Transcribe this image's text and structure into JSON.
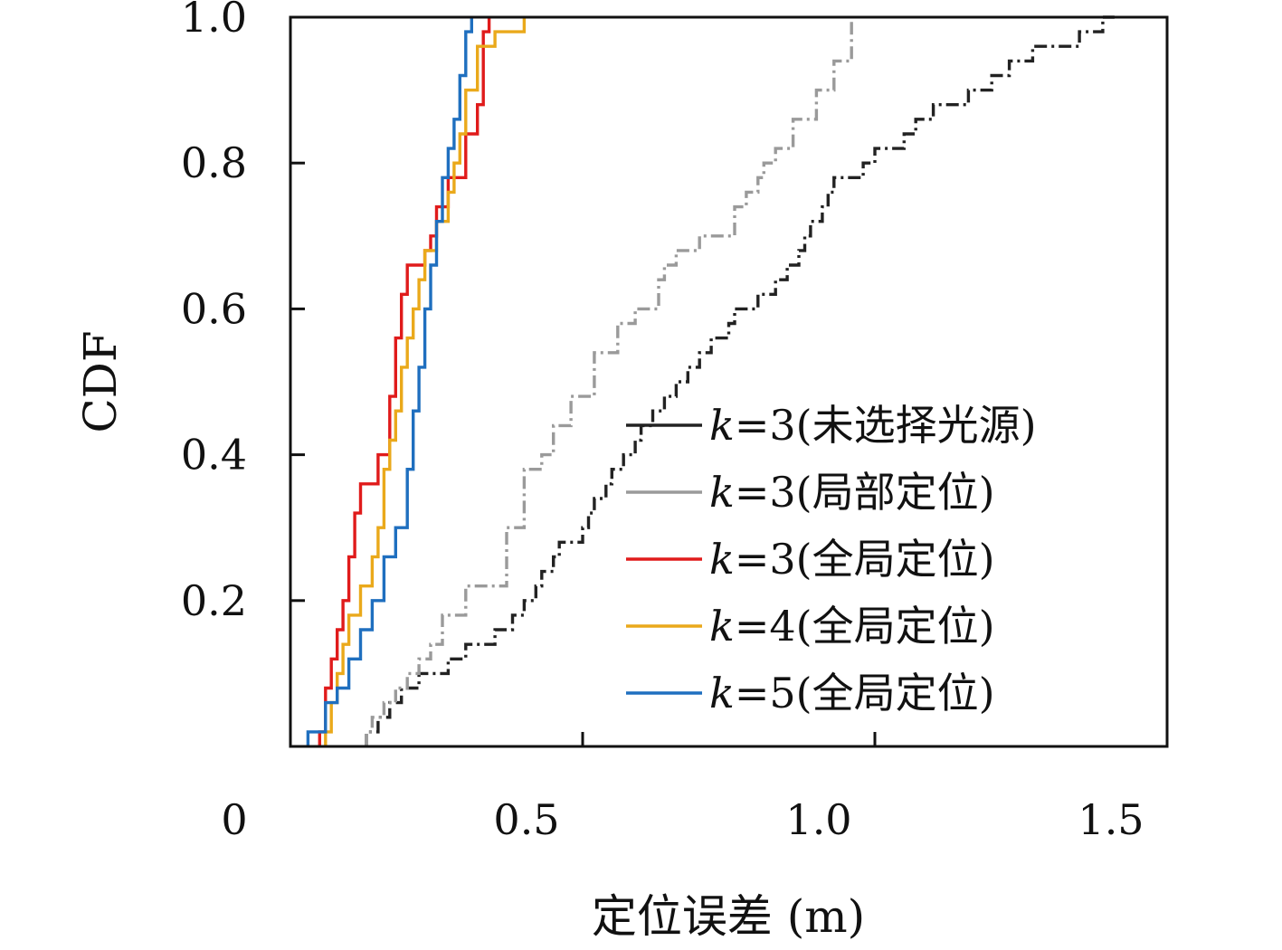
{
  "chart_data": {
    "type": "line",
    "title": "",
    "xlabel": "定位误差 (m)",
    "ylabel": "CDF",
    "xlim": [
      0,
      1.5
    ],
    "ylim": [
      0,
      1.0
    ],
    "x_ticks": [
      "0",
      "0.5",
      "1.0",
      "1.5"
    ],
    "y_ticks": [
      "0.2",
      "0.4",
      "0.6",
      "0.8",
      "1.0"
    ],
    "grid": false,
    "legend_position": "bottom-right",
    "series": [
      {
        "name": "k=3(未选择光源)",
        "color": "#222222",
        "dash": "dashdot",
        "x": [
          0.13,
          0.15,
          0.17,
          0.19,
          0.22,
          0.27,
          0.3,
          0.35,
          0.38,
          0.4,
          0.42,
          0.43,
          0.45,
          0.46,
          0.5,
          0.51,
          0.52,
          0.54,
          0.55,
          0.57,
          0.59,
          0.6,
          0.62,
          0.64,
          0.66,
          0.68,
          0.7,
          0.72,
          0.75,
          0.76,
          0.8,
          0.83,
          0.85,
          0.87,
          0.88,
          0.89,
          0.91,
          0.92,
          0.93,
          0.98,
          1.0,
          1.05,
          1.07,
          1.1,
          1.16,
          1.2,
          1.23,
          1.27,
          1.35,
          1.39,
          1.41
        ],
        "y": [
          0.02,
          0.04,
          0.06,
          0.08,
          0.1,
          0.12,
          0.14,
          0.16,
          0.18,
          0.2,
          0.22,
          0.24,
          0.26,
          0.28,
          0.3,
          0.32,
          0.34,
          0.36,
          0.38,
          0.4,
          0.42,
          0.44,
          0.46,
          0.48,
          0.5,
          0.52,
          0.54,
          0.56,
          0.58,
          0.6,
          0.62,
          0.64,
          0.66,
          0.68,
          0.7,
          0.72,
          0.74,
          0.76,
          0.78,
          0.8,
          0.82,
          0.84,
          0.86,
          0.88,
          0.9,
          0.92,
          0.94,
          0.96,
          0.98,
          1.0,
          1.0
        ]
      },
      {
        "name": "k=3(局部定位)",
        "color": "#9a9a9a",
        "dash": "dashdot",
        "x": [
          0.13,
          0.14,
          0.16,
          0.18,
          0.2,
          0.22,
          0.24,
          0.26,
          0.3,
          0.37,
          0.4,
          0.43,
          0.45,
          0.48,
          0.52,
          0.56,
          0.59,
          0.63,
          0.64,
          0.66,
          0.7,
          0.76,
          0.78,
          0.8,
          0.81,
          0.83,
          0.86,
          0.9,
          0.93,
          0.96
        ],
        "y": [
          0.02,
          0.04,
          0.06,
          0.08,
          0.1,
          0.12,
          0.14,
          0.18,
          0.22,
          0.3,
          0.38,
          0.4,
          0.44,
          0.48,
          0.54,
          0.58,
          0.6,
          0.64,
          0.66,
          0.68,
          0.7,
          0.74,
          0.76,
          0.78,
          0.8,
          0.82,
          0.86,
          0.9,
          0.94,
          1.0
        ]
      },
      {
        "name": "k=3(全局定位)",
        "color": "#e01b1b",
        "dash": "solid",
        "x": [
          0.05,
          0.06,
          0.07,
          0.08,
          0.09,
          0.1,
          0.11,
          0.12,
          0.15,
          0.17,
          0.18,
          0.19,
          0.2,
          0.23,
          0.24,
          0.25,
          0.27,
          0.3,
          0.32,
          0.33,
          0.34
        ],
        "y": [
          0.02,
          0.08,
          0.12,
          0.16,
          0.2,
          0.26,
          0.32,
          0.36,
          0.4,
          0.48,
          0.56,
          0.62,
          0.66,
          0.68,
          0.7,
          0.74,
          0.78,
          0.84,
          0.88,
          0.98,
          1.0
        ]
      },
      {
        "name": "k=4(全局定位)",
        "color": "#eaa91b",
        "dash": "solid",
        "x": [
          0.06,
          0.07,
          0.08,
          0.09,
          0.1,
          0.12,
          0.14,
          0.15,
          0.16,
          0.17,
          0.18,
          0.19,
          0.2,
          0.21,
          0.22,
          0.23,
          0.25,
          0.27,
          0.28,
          0.29,
          0.3,
          0.32,
          0.35,
          0.4
        ],
        "y": [
          0.02,
          0.06,
          0.1,
          0.14,
          0.18,
          0.22,
          0.26,
          0.3,
          0.38,
          0.42,
          0.46,
          0.52,
          0.56,
          0.6,
          0.64,
          0.68,
          0.72,
          0.76,
          0.8,
          0.84,
          0.9,
          0.96,
          0.98,
          1.0
        ]
      },
      {
        "name": "k=5(全局定位)",
        "color": "#1f6fbf",
        "dash": "solid",
        "x": [
          0.03,
          0.06,
          0.08,
          0.1,
          0.12,
          0.14,
          0.16,
          0.18,
          0.2,
          0.21,
          0.22,
          0.23,
          0.24,
          0.25,
          0.26,
          0.27,
          0.28,
          0.29,
          0.3,
          0.31
        ],
        "y": [
          0.02,
          0.06,
          0.08,
          0.12,
          0.16,
          0.2,
          0.26,
          0.3,
          0.38,
          0.46,
          0.52,
          0.6,
          0.66,
          0.72,
          0.78,
          0.82,
          0.86,
          0.92,
          0.98,
          1.0
        ]
      }
    ]
  }
}
